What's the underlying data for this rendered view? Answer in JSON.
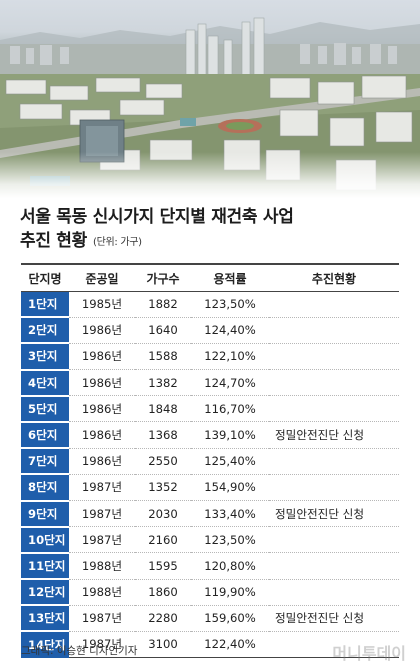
{
  "title": {
    "line1": "서울 목동 신시가지 단지별  재건축 사업",
    "line2": "추진 현황",
    "unit": "(단위: 가구)"
  },
  "table": {
    "headers": [
      "단지명",
      "준공일",
      "가구수",
      "용적률",
      "추진현황"
    ],
    "rows": [
      {
        "name": "1단지",
        "year": "1985년",
        "households": "1882",
        "far": "123,50%",
        "status": ""
      },
      {
        "name": "2단지",
        "year": "1986년",
        "households": "1640",
        "far": "124,40%",
        "status": ""
      },
      {
        "name": "3단지",
        "year": "1986년",
        "households": "1588",
        "far": "122,10%",
        "status": ""
      },
      {
        "name": "4단지",
        "year": "1986년",
        "households": "1382",
        "far": "124,70%",
        "status": ""
      },
      {
        "name": "5단지",
        "year": "1986년",
        "households": "1848",
        "far": "116,70%",
        "status": ""
      },
      {
        "name": "6단지",
        "year": "1986년",
        "households": "1368",
        "far": "139,10%",
        "status": "정밀안전진단 신청"
      },
      {
        "name": "7단지",
        "year": "1986년",
        "households": "2550",
        "far": "125,40%",
        "status": ""
      },
      {
        "name": "8단지",
        "year": "1987년",
        "households": "1352",
        "far": "154,90%",
        "status": ""
      },
      {
        "name": "9단지",
        "year": "1987년",
        "households": "2030",
        "far": "133,40%",
        "status": "정밀안전진단 신청"
      },
      {
        "name": "10단지",
        "year": "1987년",
        "households": "2160",
        "far": "123,50%",
        "status": ""
      },
      {
        "name": "11단지",
        "year": "1988년",
        "households": "1595",
        "far": "120,80%",
        "status": ""
      },
      {
        "name": "12단지",
        "year": "1988년",
        "households": "1860",
        "far": "119,90%",
        "status": ""
      },
      {
        "name": "13단지",
        "year": "1987년",
        "households": "2280",
        "far": "159,60%",
        "status": "정밀안전진단 신청"
      },
      {
        "name": "14단지",
        "year": "1987년",
        "households": "3100",
        "far": "122,40%",
        "status": ""
      }
    ]
  },
  "credit": "그래픽: 이승현 디자인기자",
  "watermark": "머니투데이",
  "colors": {
    "name_cell": "#1f5eab",
    "rule": "#444444"
  }
}
